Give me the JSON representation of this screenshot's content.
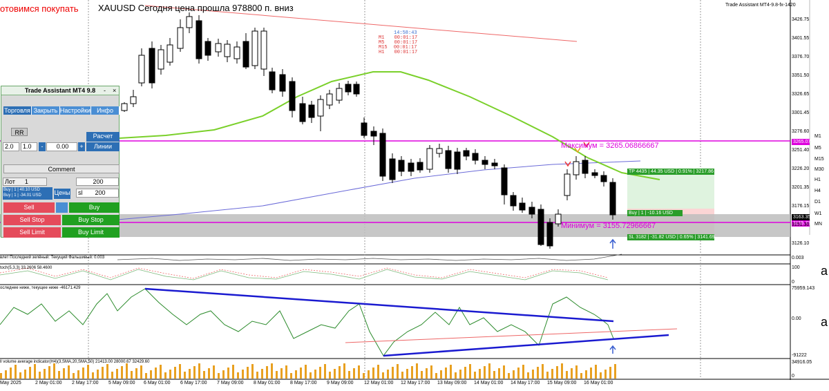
{
  "header": {
    "signal": "отовимся покупать",
    "title": "XAUUSD Сегодня цена прошла 978800 п. вниз",
    "top_right": "Trade Assistant MT4-9.8-fx-1420"
  },
  "timers": [
    "14:58:43",
    "00:01:17",
    "00:01:17",
    "00:01:17",
    "00:01:17"
  ],
  "timer_labels": [
    "M1",
    "M5",
    "M15",
    "H1"
  ],
  "levels": {
    "max_label": "Максимум = 3265.06866667",
    "min_label": "Минимум = 3155.72966667",
    "tp_label": "TP 4435 | 44.35 USD | 0.91% | 3217.86",
    "buy_label": "Buy | 1 | -10.16 USD",
    "sl_label": "SL 3182 | -31.82 USD | 0.65% | 3141.69",
    "price_tag_1": "3265.07",
    "price_tag_2": "3163.35",
    "price_tag_3": "3155.73"
  },
  "price_axis": [
    "3426.75",
    "3401.55",
    "3376.70",
    "3351.50",
    "3326.65",
    "3301.45",
    "3276.60",
    "3251.40",
    "3226.20",
    "3201.35",
    "3176.15",
    "3151.30",
    "3126.10"
  ],
  "osc_axis": {
    "a": "0.003",
    "b": "100",
    "c": "0",
    "d": "75959.143",
    "e": "0.00",
    "f": "-91222",
    "g": "34916.05",
    "h": "0"
  },
  "indicators": {
    "ind1": "влет Последний зелёный: Текущий Фальшивый: 0.003",
    "ind2": "toch(5,3,3) 33.2606 58.4600",
    "ind3": "оследнее ниже, текущее ниже -46171.429",
    "ind4": "ll volume average indicator(H4)(3,SMA,20,SMA,50) 21413.00 28000.67 32429.60"
  },
  "time_axis": [
    "May 2025",
    "2 May 01:00",
    "2 May 17:00",
    "5 May 09:00",
    "6 May 01:00",
    "6 May 17:00",
    "7 May 09:00",
    "8 May 01:00",
    "8 May 17:00",
    "9 May 09:00",
    "12 May 01:00",
    "12 May 17:00",
    "13 May 09:00",
    "14 May 01:00",
    "14 May 17:00",
    "15 May 09:00",
    "16 May 01:00"
  ],
  "timeframes": [
    "M1",
    "M5",
    "M15",
    "M30",
    "H1",
    "H4",
    "D1",
    "W1",
    "MN"
  ],
  "side_letters": [
    "a",
    "a"
  ],
  "panel": {
    "title": "Trade Assistant MT4 9.8",
    "minimize": "-",
    "close": "×",
    "tabs": [
      "Торговля",
      "Закрыть",
      "Настройки",
      "Инфо"
    ],
    "rr_label": "RR",
    "calc_label": "Расчет лота",
    "rr_value": "2.0",
    "ratio_value": "1.0",
    "minus": "-",
    "offset_value": "0.00",
    "plus": "+",
    "lines_label": "Линии",
    "comment_label": "Comment",
    "lot_label": "Лот",
    "lot_value": "1",
    "lot_amount": "200",
    "buy_info_1": "Buy | 1 | 40.10 USD",
    "buy_info_2": "Buy | 1 | -34.01 USD",
    "prices_label": "Цены",
    "sl_label": "sl",
    "sl_value": "200",
    "sell": "Sell",
    "buy": "Buy",
    "sell_stop": "Sell Stop",
    "buy_stop": "Buy Stop",
    "sell_limit": "Sell Limit",
    "buy_limit": "Buy Limit"
  }
}
